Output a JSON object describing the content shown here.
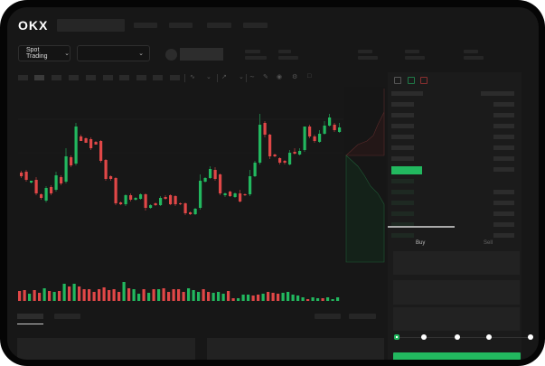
{
  "header": {
    "logo": "OKX",
    "nav_placeholders": 4
  },
  "toolbar": {
    "market_dropdown": "Spot Trading",
    "pair_dropdown": ""
  },
  "order_form": {
    "tabs": [
      "Buy",
      "Sell"
    ],
    "active_tab": "Buy",
    "leverage_slider": 0
  },
  "colors": {
    "up": "#22b85f",
    "down": "#e04747",
    "background": "#171717",
    "panel": "#1b1b1b"
  },
  "icons": [
    "okx-logo",
    "chevron-down-icon",
    "orderbook-both-icon",
    "orderbook-bids-icon",
    "orderbook-asks-icon"
  ],
  "candles": [
    [
      57,
      59,
      51,
      53
    ],
    [
      58,
      60,
      47,
      49
    ],
    [
      46,
      48,
      45,
      48
    ],
    [
      49,
      52,
      32,
      34
    ],
    [
      33,
      34,
      27,
      29
    ],
    [
      26,
      42,
      24,
      40
    ],
    [
      41,
      43,
      32,
      34
    ],
    [
      38,
      58,
      36,
      54
    ],
    [
      52,
      54,
      43,
      45
    ],
    [
      47,
      84,
      45,
      75
    ],
    [
      74,
      76,
      63,
      65
    ],
    [
      67,
      112,
      65,
      108
    ],
    [
      97,
      99,
      92,
      92
    ],
    [
      95,
      96,
      90,
      90
    ],
    [
      94,
      96,
      82,
      84
    ],
    [
      91,
      92,
      88,
      88
    ],
    [
      92,
      93,
      68,
      70
    ],
    [
      71,
      72,
      48,
      50
    ],
    [
      53,
      54,
      48,
      50
    ],
    [
      51,
      52,
      21,
      23
    ],
    [
      24,
      25,
      21,
      22
    ],
    [
      22,
      33,
      20,
      32
    ],
    [
      32,
      34,
      25,
      27
    ],
    [
      27,
      30,
      26,
      29
    ],
    [
      28,
      34,
      27,
      33
    ],
    [
      33,
      34,
      15,
      18
    ],
    [
      18,
      22,
      17,
      21
    ],
    [
      23,
      24,
      20,
      21
    ],
    [
      21,
      31,
      20,
      29
    ],
    [
      30,
      32,
      27,
      28
    ],
    [
      32,
      33,
      21,
      22
    ],
    [
      31,
      32,
      20,
      22
    ],
    [
      23,
      24,
      21,
      22
    ],
    [
      23,
      24,
      10,
      12
    ],
    [
      13,
      14,
      10,
      11
    ],
    [
      11,
      18,
      10,
      17
    ],
    [
      18,
      55,
      16,
      48
    ],
    [
      47,
      52,
      46,
      51
    ],
    [
      51,
      64,
      50,
      61
    ],
    [
      60,
      63,
      48,
      50
    ],
    [
      55,
      56,
      32,
      34
    ],
    [
      32,
      35,
      30,
      34
    ],
    [
      36,
      37,
      30,
      31
    ],
    [
      30,
      35,
      29,
      34
    ],
    [
      34,
      38,
      24,
      25
    ],
    [
      33,
      34,
      31,
      32
    ],
    [
      33,
      60,
      31,
      53
    ],
    [
      53,
      70,
      52,
      68
    ],
    [
      68,
      122,
      66,
      110
    ],
    [
      112,
      114,
      96,
      99
    ],
    [
      99,
      100,
      72,
      75
    ],
    [
      77,
      78,
      74,
      75
    ],
    [
      73,
      74,
      66,
      68
    ],
    [
      70,
      71,
      66,
      68
    ],
    [
      66,
      82,
      65,
      79
    ],
    [
      80,
      84,
      77,
      78
    ],
    [
      77,
      84,
      76,
      81
    ],
    [
      82,
      108,
      80,
      108
    ],
    [
      108,
      110,
      95,
      97
    ],
    [
      97,
      99,
      90,
      92
    ],
    [
      91,
      104,
      90,
      100
    ],
    [
      100,
      114,
      99,
      109
    ],
    [
      109,
      122,
      108,
      118
    ],
    [
      110,
      112,
      102,
      104
    ],
    [
      102,
      112,
      101,
      107
    ]
  ],
  "volumes": [
    [
      11,
      0
    ],
    [
      12,
      0
    ],
    [
      8,
      1
    ],
    [
      12,
      0
    ],
    [
      9,
      0
    ],
    [
      14,
      1
    ],
    [
      11,
      0
    ],
    [
      10,
      1
    ],
    [
      11,
      0
    ],
    [
      19,
      1
    ],
    [
      16,
      0
    ],
    [
      19,
      1
    ],
    [
      16,
      0
    ],
    [
      13,
      0
    ],
    [
      13,
      0
    ],
    [
      10,
      0
    ],
    [
      13,
      0
    ],
    [
      15,
      0
    ],
    [
      12,
      0
    ],
    [
      13,
      0
    ],
    [
      10,
      0
    ],
    [
      21,
      1
    ],
    [
      14,
      0
    ],
    [
      13,
      1
    ],
    [
      8,
      1
    ],
    [
      13,
      0
    ],
    [
      9,
      1
    ],
    [
      13,
      0
    ],
    [
      13,
      1
    ],
    [
      14,
      0
    ],
    [
      10,
      0
    ],
    [
      13,
      0
    ],
    [
      13,
      0
    ],
    [
      10,
      0
    ],
    [
      14,
      1
    ],
    [
      12,
      1
    ],
    [
      10,
      1
    ],
    [
      13,
      0
    ],
    [
      10,
      0
    ],
    [
      9,
      1
    ],
    [
      10,
      1
    ],
    [
      8,
      1
    ],
    [
      11,
      0
    ],
    [
      3,
      0
    ],
    [
      3,
      1
    ],
    [
      7,
      1
    ],
    [
      7,
      1
    ],
    [
      6,
      0
    ],
    [
      7,
      0
    ],
    [
      8,
      1
    ],
    [
      10,
      0
    ],
    [
      9,
      0
    ],
    [
      8,
      0
    ],
    [
      9,
      1
    ],
    [
      10,
      1
    ],
    [
      7,
      1
    ],
    [
      6,
      1
    ],
    [
      4,
      1
    ],
    [
      2,
      0
    ],
    [
      4,
      1
    ],
    [
      3,
      1
    ],
    [
      3,
      0
    ],
    [
      4,
      1
    ],
    [
      2,
      1
    ],
    [
      4,
      1
    ]
  ],
  "orderbook": {
    "asks": 7,
    "bids": 6
  }
}
